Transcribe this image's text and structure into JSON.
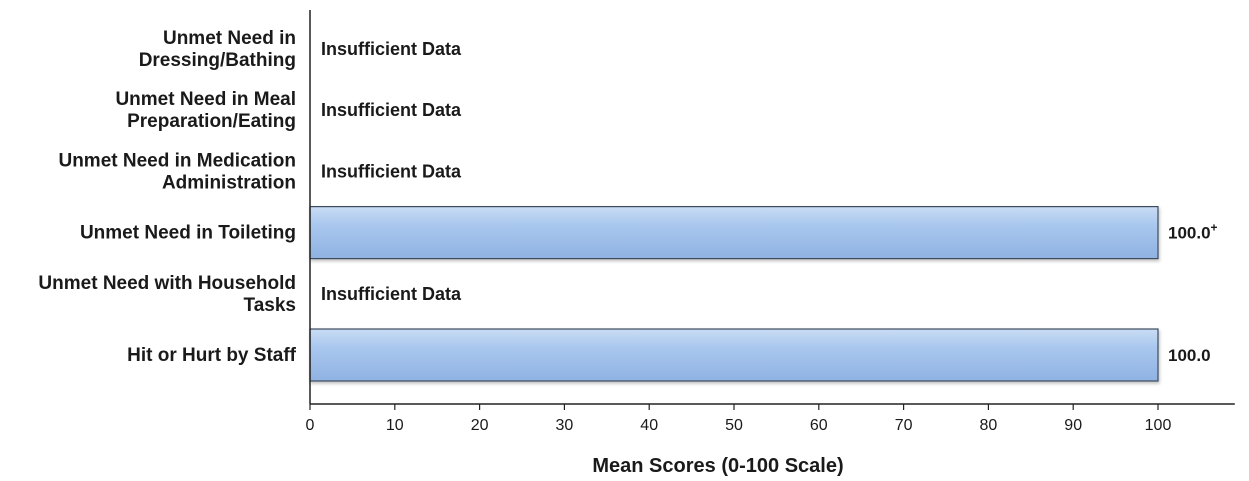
{
  "chart_data": {
    "type": "bar",
    "orientation": "horizontal",
    "categories": [
      [
        "Unmet Need in",
        "Dressing/Bathing"
      ],
      [
        "Unmet Need in Meal",
        "Preparation/Eating"
      ],
      [
        "Unmet Need in Medication",
        "Administration"
      ],
      [
        "Unmet Need in Toileting"
      ],
      [
        "Unmet Need with Household",
        "Tasks"
      ],
      [
        "Hit or Hurt by Staff"
      ]
    ],
    "values": [
      null,
      null,
      null,
      100.0,
      null,
      100.0
    ],
    "value_labels": [
      "Insufficient Data",
      "Insufficient Data",
      "Insufficient Data",
      "100.0",
      "Insufficient Data",
      "100.0"
    ],
    "value_label_superscripts": [
      "",
      "",
      "",
      "+",
      "",
      ""
    ],
    "xlabel": "Mean Scores (0-100 Scale)",
    "ylabel": "",
    "xlim": [
      0,
      110
    ],
    "xticks": [
      0,
      10,
      20,
      30,
      40,
      50,
      60,
      70,
      80,
      90,
      100
    ],
    "grid": false,
    "legend": "none",
    "bar_color": "#a7c4ea",
    "bar_edge_color": "#3d4b5e"
  }
}
